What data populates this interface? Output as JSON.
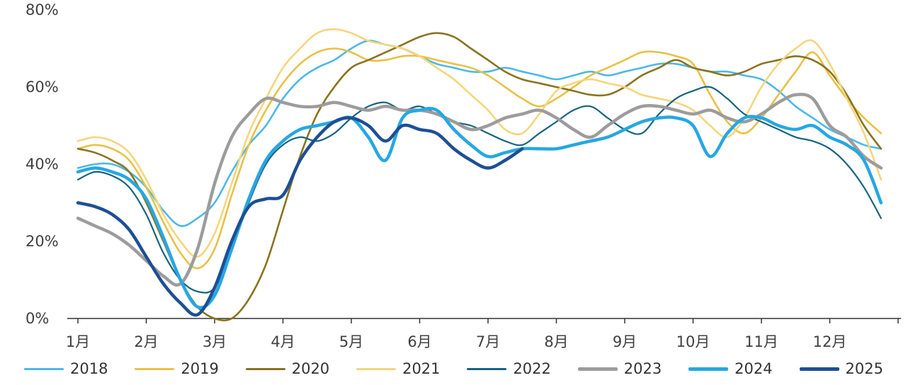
{
  "chart_data": {
    "type": "line",
    "title": "",
    "xlabel": "",
    "ylabel": "",
    "ylim": [
      0,
      80
    ],
    "y_ticks": [
      "0%",
      "20%",
      "40%",
      "60%",
      "80%"
    ],
    "x_tick_labels": [
      "1月",
      "2月",
      "3月",
      "4月",
      "5月",
      "6月",
      "7月",
      "8月",
      "9月",
      "10月",
      "11月",
      "12月"
    ],
    "points_per_month": 4,
    "grid": false,
    "legend_position": "bottom",
    "axis_color": "#333333",
    "label_color": "#404040",
    "series": [
      {
        "name": "2018",
        "color": "#4DB8E8",
        "width": 2.6,
        "values": [
          39,
          40,
          40,
          38,
          34,
          28,
          24,
          26,
          30,
          38,
          45,
          50,
          57,
          62,
          65,
          67,
          70,
          72,
          71,
          70,
          68,
          66,
          65,
          64,
          64,
          65,
          64,
          63,
          62,
          63,
          64,
          63,
          64,
          65,
          66,
          66,
          65,
          64,
          64,
          63,
          62,
          59,
          55,
          52,
          49,
          47,
          45,
          44
        ]
      },
      {
        "name": "2019",
        "color": "#E9C046",
        "width": 2.6,
        "values": [
          44,
          45,
          44,
          41,
          34,
          25,
          17,
          13,
          18,
          32,
          45,
          54,
          61,
          66,
          69,
          70,
          69,
          67,
          67,
          68,
          68,
          67,
          66,
          65,
          63,
          60,
          57,
          55,
          57,
          60,
          63,
          65,
          67,
          69,
          69,
          68,
          66,
          58,
          51,
          48,
          52,
          58,
          64,
          69,
          63,
          57,
          52,
          48
        ]
      },
      {
        "name": "2020",
        "color": "#8A731F",
        "width": 2.6,
        "values": [
          44,
          43,
          41,
          38,
          30,
          20,
          10,
          3,
          0,
          0,
          5,
          14,
          28,
          42,
          53,
          60,
          65,
          67,
          69,
          71,
          73,
          74,
          73,
          70,
          67,
          64,
          62,
          61,
          60,
          59,
          58,
          58,
          60,
          63,
          65,
          67,
          65,
          64,
          63,
          64,
          66,
          67,
          68,
          67,
          64,
          58,
          50,
          44
        ]
      },
      {
        "name": "2021",
        "color": "#F5D57D",
        "width": 2.6,
        "values": [
          46,
          47,
          46,
          43,
          36,
          27,
          20,
          16,
          22,
          35,
          48,
          57,
          65,
          70,
          74,
          75,
          74,
          72,
          71,
          70,
          68,
          65,
          62,
          58,
          54,
          49,
          48,
          53,
          59,
          61,
          62,
          61,
          60,
          58,
          57,
          56,
          54,
          50,
          47,
          52,
          60,
          66,
          70,
          72,
          66,
          57,
          48,
          36
        ]
      },
      {
        "name": "2022",
        "color": "#17647F",
        "width": 2.2,
        "values": [
          36,
          38,
          37,
          34,
          27,
          17,
          10,
          7,
          8,
          18,
          30,
          40,
          45,
          47,
          46,
          48,
          52,
          55,
          56,
          54,
          55,
          53,
          51,
          50,
          48,
          46,
          45,
          48,
          51,
          54,
          55,
          52,
          49,
          48,
          53,
          57,
          59,
          60,
          57,
          53,
          51,
          49,
          47,
          46,
          44,
          40,
          34,
          26
        ]
      },
      {
        "name": "2023",
        "color": "#9C9C9C",
        "width": 4.5,
        "values": [
          26,
          24,
          22,
          19,
          15,
          11,
          9,
          18,
          35,
          47,
          53,
          57,
          56,
          55,
          55,
          56,
          55,
          54,
          55,
          54,
          54,
          53,
          51,
          49,
          50,
          52,
          53,
          54,
          52,
          49,
          47,
          50,
          53,
          55,
          55,
          54,
          53,
          54,
          52,
          51,
          53,
          56,
          58,
          57,
          50,
          47,
          42,
          39
        ]
      },
      {
        "name": "2024",
        "color": "#26A7E3",
        "width": 4.5,
        "values": [
          38,
          39,
          38,
          36,
          31,
          21,
          10,
          3,
          6,
          18,
          31,
          41,
          46,
          49,
          50,
          51,
          52,
          47,
          41,
          52,
          54,
          54,
          49,
          45,
          42,
          43,
          44,
          44,
          44,
          45,
          46,
          47,
          49,
          51,
          52,
          52,
          50,
          42,
          48,
          52,
          52,
          50,
          49,
          50,
          47,
          45,
          41,
          30
        ]
      },
      {
        "name": "2025",
        "color": "#1D4F94",
        "width": 4.5,
        "values": [
          30,
          29,
          27,
          23,
          16,
          9,
          4,
          1,
          8,
          20,
          29,
          31,
          32,
          41,
          47,
          51,
          52,
          50,
          46,
          50,
          49,
          48,
          44,
          41,
          39,
          41,
          44
        ]
      }
    ]
  }
}
